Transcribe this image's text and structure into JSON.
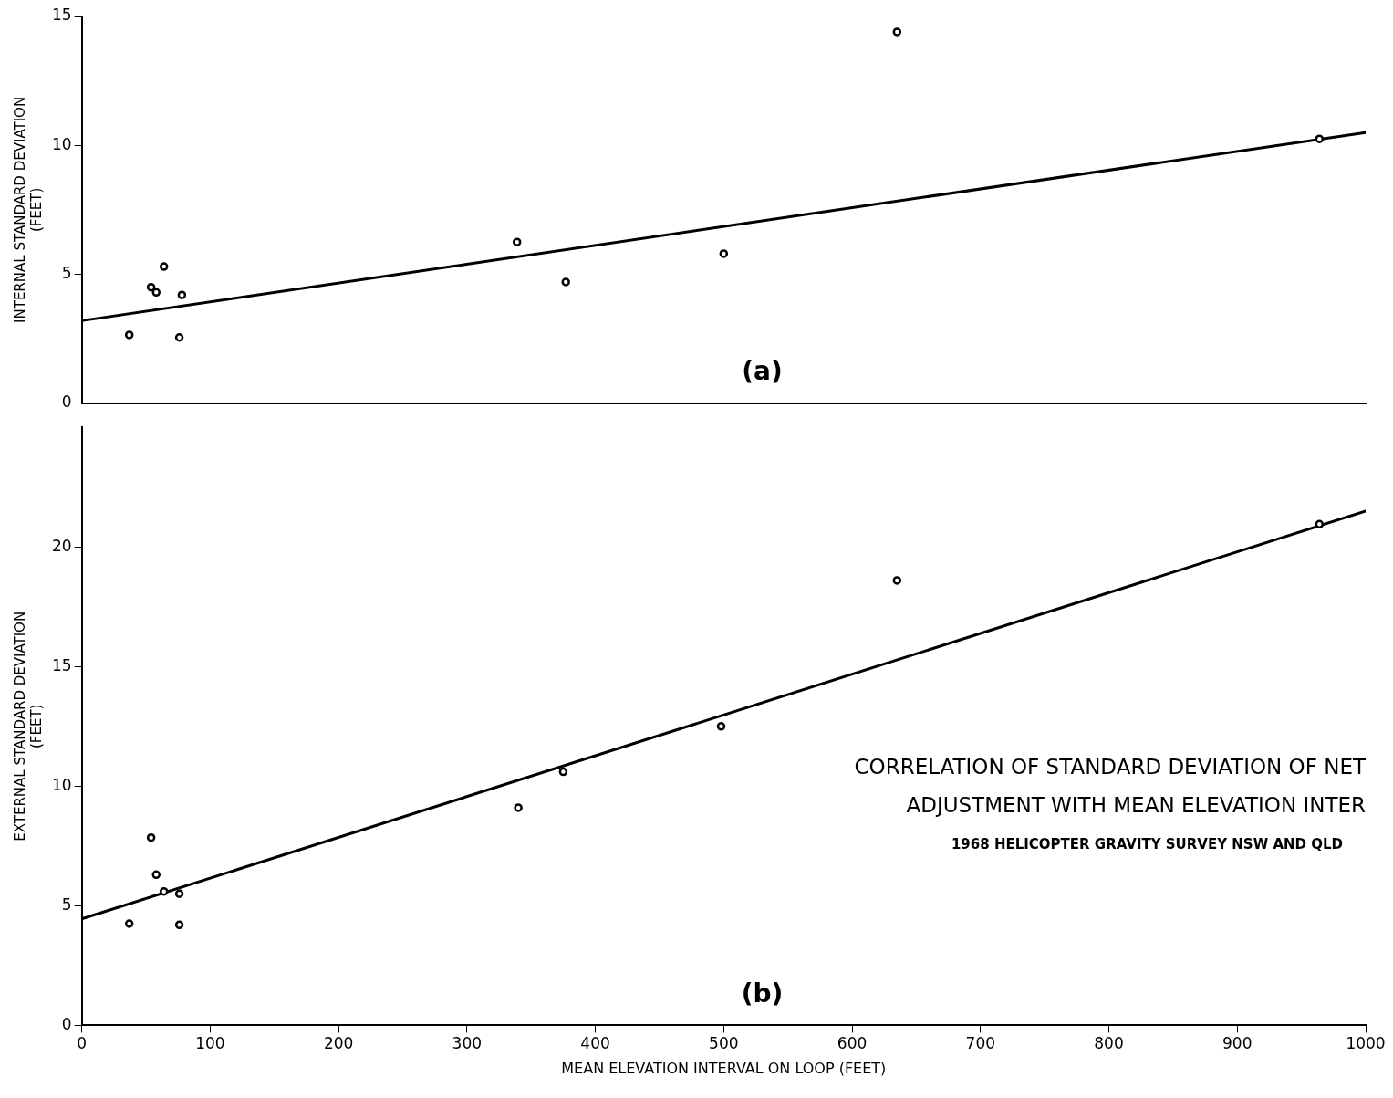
{
  "chart_data": [
    {
      "type": "scatter",
      "ylabel": "INTERNAL STANDARD DEVIATION\n(FEET)",
      "annotations": [
        "(a)"
      ],
      "xlim": [
        0,
        1000
      ],
      "ylim": [
        0,
        15
      ],
      "yticks": [
        0,
        5,
        10,
        15
      ],
      "tick_labels": "y",
      "series": [
        {
          "marker": "circle",
          "color": "#000000",
          "x": [
            37,
            54,
            58,
            64,
            76,
            78,
            339,
            377,
            500,
            635,
            964
          ],
          "values": [
            2.65,
            4.5,
            4.3,
            5.3,
            2.55,
            4.2,
            6.25,
            4.7,
            5.8,
            14.4,
            10.25
          ]
        },
        {
          "type": "line",
          "marker": "none",
          "color": "#000000",
          "x": [
            0,
            1000
          ],
          "values": [
            3.2,
            10.5
          ]
        }
      ]
    },
    {
      "type": "scatter",
      "title": "CORRELATION OF STANDARD DEVIATION OF NET\nADJUSTMENT WITH MEAN ELEVATION INTER",
      "subtitle": "1968 HELICOPTER GRAVITY SURVEY NSW AND QLD",
      "xlabel": "MEAN ELEVATION INTERVAL ON LOOP (FEET)",
      "ylabel": "EXTERNAL STANDARD DEVIATION\n(FEET)",
      "annotations": [
        "(b)"
      ],
      "xlim": [
        0,
        1000
      ],
      "xticks": [
        0,
        100,
        200,
        300,
        400,
        500,
        600,
        700,
        800,
        900,
        1000
      ],
      "ylim": [
        0,
        25
      ],
      "yticks": [
        0,
        5,
        10,
        15,
        20
      ],
      "series": [
        {
          "marker": "circle",
          "color": "#000000",
          "x": [
            37,
            54,
            58,
            64,
            76,
            76,
            340,
            375,
            498,
            635,
            964
          ],
          "values": [
            4.25,
            7.85,
            6.3,
            5.6,
            5.5,
            4.2,
            9.1,
            10.6,
            12.5,
            18.6,
            20.95
          ]
        },
        {
          "type": "line",
          "marker": "none",
          "color": "#000000",
          "x": [
            0,
            1000
          ],
          "values": [
            4.45,
            21.5
          ]
        }
      ]
    }
  ]
}
